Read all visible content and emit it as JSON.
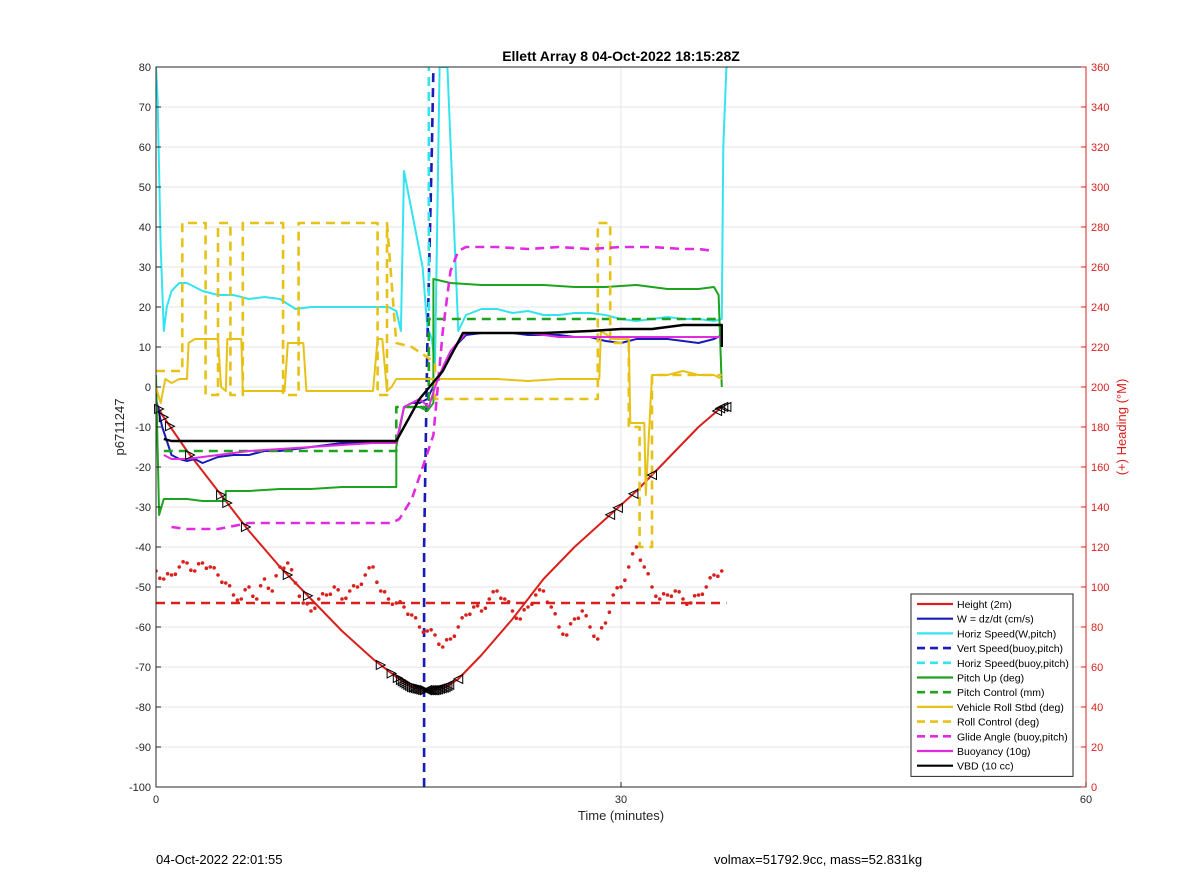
{
  "footer": {
    "left": "04-Oct-2022 22:01:55",
    "right": "volmax=51792.9cc, mass=52.831kg"
  },
  "chart_data": {
    "type": "line",
    "title": "Ellett Array 8 04-Oct-2022 18:15:28Z",
    "xlabel": "Time (minutes)",
    "ylabel": "p6711247",
    "y2label": "(+) Heading (°M)",
    "xlim": [
      0,
      60
    ],
    "ylim": [
      -100,
      80
    ],
    "y2lim": [
      0,
      360
    ],
    "x_ticks": [
      "0",
      "30",
      "60"
    ],
    "y_ticks": [
      "80",
      "70",
      "60",
      "50",
      "40",
      "30",
      "20",
      "10",
      "0",
      "-10",
      "-20",
      "-30",
      "-40",
      "-50",
      "-60",
      "-70",
      "-80",
      "-90",
      "-100"
    ],
    "y2_ticks": [
      "360",
      "340",
      "320",
      "300",
      "280",
      "260",
      "240",
      "220",
      "200",
      "180",
      "160",
      "140",
      "120",
      "100",
      "80",
      "60",
      "40",
      "20",
      "0"
    ],
    "grid": true,
    "legend_position": "bottom-right",
    "colors": {
      "red": "#d9201c",
      "blue": "#1a1ab8",
      "cyan": "#33e4ee",
      "green": "#1ea31e",
      "yellow": "#e6c218",
      "magenta": "#e02be0",
      "black": "#000000"
    },
    "series": [
      {
        "name": "Height (2m)",
        "color": "#d9201c",
        "style": "solid",
        "width": 2,
        "x": [
          0,
          0.4,
          2,
          4,
          6,
          8,
          10,
          12,
          14,
          15.5,
          16.5,
          17.3,
          18,
          18.7,
          19.5,
          21,
          23,
          25,
          27,
          29,
          31,
          33,
          35,
          36.5
        ],
        "y": [
          -4,
          -7,
          -16,
          -26,
          -36,
          -45,
          -53,
          -61,
          -68,
          -72.5,
          -75,
          -75.8,
          -75.8,
          -75,
          -73,
          -67,
          -58,
          -48,
          -40,
          -33,
          -26,
          -18,
          -10,
          -5
        ]
      },
      {
        "name": "W = dz/dt (cm/s)",
        "color": "#1a1ab8",
        "style": "solid",
        "width": 2,
        "x": [
          0,
          0.4,
          1,
          1.5,
          2,
          2.5,
          3,
          4,
          5,
          6,
          7,
          8,
          9,
          10,
          11,
          12,
          13,
          14,
          15,
          15.5,
          16,
          16.5,
          17,
          17.5,
          18,
          18.5,
          19,
          19.5,
          20,
          21,
          22,
          23,
          24,
          25,
          26,
          27,
          28,
          29,
          30,
          31,
          32,
          33,
          34,
          35,
          36,
          36.5
        ],
        "y": [
          -3,
          -10,
          -17,
          -18,
          -18.5,
          -18,
          -19,
          -17.5,
          -17,
          -17,
          -16,
          -16,
          -15.5,
          -15,
          -14.5,
          -14,
          -14,
          -14,
          -14,
          -14,
          -5,
          -4,
          -4,
          -3,
          1,
          4,
          8,
          11,
          13,
          13.5,
          13.5,
          13.5,
          13,
          13,
          13,
          12.5,
          12.5,
          11.5,
          11,
          12,
          12,
          12,
          11.5,
          11,
          12,
          13
        ]
      },
      {
        "name": "Horiz Speed(W,pitch)",
        "color": "#33e4ee",
        "style": "solid",
        "width": 2,
        "x": [
          0,
          0.1,
          0.3,
          0.5,
          0.7,
          1,
          1.5,
          2,
          3,
          4,
          5,
          6,
          7,
          8,
          9,
          10,
          11,
          12,
          13,
          14,
          15,
          15.5,
          15.8,
          16,
          16.3,
          16.8,
          17.2,
          17.5,
          17.8,
          18,
          18.3,
          18.8,
          19.5,
          20,
          21,
          22,
          23,
          24,
          25,
          26,
          27,
          28,
          29,
          30,
          31,
          32,
          33,
          34,
          35,
          36,
          36.5,
          36.6,
          36.8,
          36.9
        ],
        "y": [
          80,
          72,
          35,
          14,
          20,
          24,
          26,
          26,
          24,
          23,
          23,
          22,
          22.5,
          22,
          19.5,
          20,
          20,
          20,
          20,
          20,
          20,
          19,
          14,
          54,
          48,
          38,
          30,
          15,
          12,
          5,
          80,
          80,
          14,
          18,
          19.5,
          19.5,
          18.5,
          19,
          18,
          18,
          18.5,
          18.5,
          18,
          17,
          16.5,
          17,
          17.5,
          17,
          17,
          16.5,
          17,
          60,
          80,
          80
        ]
      },
      {
        "name": "Vert Speed(buoy,pitch)",
        "color": "#1a1ab8",
        "style": "dashed",
        "width": 2.6,
        "x": [
          17.3,
          17.3,
          17.5,
          17.8,
          17.9
        ],
        "y": [
          -100,
          -40,
          10,
          60,
          80
        ]
      },
      {
        "name": "Horiz Speed(buoy,pitch)",
        "color": "#33e4ee",
        "style": "dashed",
        "width": 2.6,
        "x": [
          17.6,
          17.6
        ],
        "y": [
          4,
          80
        ]
      },
      {
        "name": "Pitch Up (deg)",
        "color": "#1ea31e",
        "style": "solid",
        "width": 2,
        "x": [
          0,
          0.2,
          0.5,
          1,
          2,
          3,
          4.5,
          4.5,
          6,
          8,
          10,
          12,
          14,
          15.5,
          15.5,
          16,
          17,
          17.5,
          17.9,
          17.9,
          19,
          21,
          23,
          25,
          27,
          29,
          31,
          33,
          35,
          36,
          36.3,
          36.5
        ],
        "y": [
          3,
          -32,
          -28,
          -28,
          -28,
          -28.5,
          -28.5,
          -26,
          -26,
          -25.5,
          -25.5,
          -25,
          -25,
          -25,
          -15,
          -5,
          -5,
          -6,
          -4,
          27,
          26,
          25.5,
          25.5,
          25.5,
          25,
          25,
          25.5,
          24.5,
          24.5,
          25,
          23,
          0
        ]
      },
      {
        "name": "Pitch Control (mm)",
        "color": "#1ea31e",
        "style": "dashed",
        "width": 2.6,
        "x": [
          0.5,
          1,
          2,
          6,
          10,
          14,
          15.5,
          15.5,
          17,
          17.6,
          17.6,
          22,
          26,
          30,
          34,
          36.5
        ],
        "y": [
          -16,
          -16,
          -16,
          -16,
          -16,
          -16,
          -16,
          -5,
          -5,
          -5,
          17,
          17,
          17,
          17,
          17,
          17
        ]
      },
      {
        "name": "Vehicle Roll Stbd (deg)",
        "color": "#e6c218",
        "style": "solid",
        "width": 2,
        "x": [
          0,
          0.3,
          0.6,
          1,
          1.5,
          2,
          2.1,
          2.5,
          4,
          4.2,
          4.5,
          4.6,
          5.5,
          5.6,
          6,
          8,
          8.3,
          8.5,
          9.5,
          9.7,
          10,
          14,
          14.3,
          14.6,
          14.9,
          15.2,
          15.5,
          16,
          17,
          18,
          20,
          22,
          24,
          26,
          28,
          28.6,
          28.7,
          29.5,
          30.5,
          30.6,
          31.5,
          31.6,
          32,
          33,
          34,
          35,
          36,
          36.5
        ],
        "y": [
          0,
          -4,
          2,
          1,
          2,
          2,
          11,
          12,
          12,
          0,
          -1,
          12,
          12,
          -1,
          -1,
          -1,
          -1,
          11,
          11,
          -1,
          -1,
          -1,
          12,
          12,
          -1,
          0,
          2,
          2,
          2,
          2,
          2,
          2,
          1.5,
          2,
          2,
          2,
          14,
          12,
          12,
          -9,
          -9,
          -27,
          3,
          3,
          4,
          3,
          3,
          2
        ]
      },
      {
        "name": "Roll Control (deg)",
        "color": "#e6c218",
        "style": "dashed",
        "width": 2.6,
        "x": [
          0,
          0.5,
          0.8,
          1.7,
          1.7,
          2.2,
          3.2,
          3.2,
          4,
          4,
          4.8,
          4.8,
          5.6,
          5.6,
          8.2,
          8.2,
          9.2,
          9.2,
          14.3,
          14.3,
          14.9,
          14.9,
          15.5,
          16.5,
          17.3,
          18,
          18,
          20,
          24,
          28.5,
          28.5,
          29.3,
          29.3,
          30.5,
          30.5,
          31.2,
          31.2,
          32,
          32,
          36.5
        ],
        "y": [
          4,
          4,
          4,
          4,
          41,
          41,
          41,
          -2,
          -2,
          41,
          41,
          -2,
          -2,
          41,
          41,
          -2,
          -2,
          41,
          41,
          -2,
          -2,
          41,
          11,
          10,
          8,
          6,
          -3,
          -3,
          -3,
          -3,
          41,
          41,
          11,
          11,
          -10,
          -10,
          -40,
          -40,
          3,
          3
        ]
      },
      {
        "name": "Glide Angle (buoy,pitch)",
        "color": "#e02be0",
        "style": "dashed",
        "width": 2.6,
        "x": [
          1,
          2,
          4,
          6,
          8,
          10,
          12,
          14,
          15.2,
          15.7,
          16.5,
          17.3,
          17.9,
          18.5,
          19,
          19.5,
          20,
          22,
          24,
          26,
          28,
          30,
          32,
          34,
          35,
          36
        ],
        "y": [
          -35,
          -35.5,
          -35.5,
          -34,
          -34,
          -34,
          -34,
          -34,
          -34,
          -33,
          -28,
          -19,
          -12,
          14,
          29,
          34,
          35,
          35,
          34.5,
          35,
          34.5,
          35,
          35,
          34.5,
          34.5,
          34
        ]
      },
      {
        "name": "Buoyancy (10g)",
        "color": "#e02be0",
        "style": "solid",
        "width": 2,
        "x": [
          0.5,
          1,
          2,
          4,
          6,
          8,
          10,
          12,
          14,
          15.5,
          16,
          17,
          17.6,
          18,
          18.5,
          19,
          20,
          22,
          24,
          26,
          28,
          30,
          32,
          34,
          36.5
        ],
        "y": [
          -17,
          -18,
          -18,
          -17,
          -16,
          -15.5,
          -15,
          -14.5,
          -14,
          -14,
          -5,
          -3,
          -5,
          0,
          5,
          9,
          13.5,
          13.5,
          13.5,
          12.5,
          12.5,
          12.5,
          12.5,
          12.5,
          12.5
        ]
      },
      {
        "name": "VBD (10 cc)",
        "color": "#000000",
        "style": "solid",
        "width": 2.4,
        "x": [
          0.5,
          1,
          3,
          6,
          9,
          12,
          15.5,
          17,
          18.5,
          19.8,
          22,
          25,
          28,
          30,
          32,
          34,
          36.5,
          36.5
        ],
        "y": [
          -13,
          -13.5,
          -13.5,
          -13.5,
          -13.5,
          -13.5,
          -13.5,
          -3,
          4,
          13.5,
          13.5,
          13.5,
          14,
          14.5,
          14.5,
          15.5,
          15.5,
          10
        ]
      },
      {
        "name": "Heading Avg",
        "color": "#d9201c",
        "style": "dashed",
        "width": 2.6,
        "legend": false,
        "x": [
          0,
          36.8
        ],
        "y": [
          -54,
          -54
        ]
      },
      {
        "name": "Heading Samples",
        "color": "#d9201c",
        "style": "dots",
        "width": 2,
        "legend": false,
        "x": [
          0,
          0.5,
          1,
          1.5,
          2,
          2.5,
          3,
          3.5,
          4,
          4.5,
          5,
          5.5,
          6,
          6.5,
          7,
          7.5,
          8,
          8.5,
          9,
          9.5,
          10,
          10.5,
          11,
          11.5,
          12,
          12.5,
          13,
          13.5,
          14,
          14.5,
          15,
          15.5,
          16,
          16.5,
          17,
          17.5,
          18,
          18.5,
          19,
          19.5,
          20,
          20.5,
          21,
          21.5,
          22,
          22.5,
          23,
          23.5,
          24,
          24.5,
          25,
          25.5,
          26,
          26.5,
          27,
          27.5,
          28,
          28.5,
          29,
          29.5,
          30,
          30.5,
          31,
          31.5,
          32,
          32.5,
          33,
          33.5,
          34,
          34.5,
          35,
          35.5,
          36,
          36.5
        ],
        "y": [
          -46,
          -48,
          -47,
          -45,
          -44,
          -46,
          -44,
          -45,
          -47,
          -49,
          -52,
          -53,
          -50,
          -53,
          -48,
          -51,
          -45,
          -44,
          -49,
          -54,
          -56,
          -53,
          -52,
          -50,
          -53,
          -51,
          -50,
          -47,
          -45,
          -51,
          -53,
          -54,
          -55,
          -57,
          -60,
          -61,
          -62,
          -65,
          -63,
          -60,
          -57,
          -55,
          -56,
          -53,
          -51,
          -53,
          -56,
          -58,
          -55,
          -52,
          -51,
          -55,
          -60,
          -62,
          -58,
          -56,
          -60,
          -63,
          -59,
          -52,
          -50,
          -45,
          -40,
          -45,
          -50,
          -53,
          -52,
          -51,
          -53,
          -54,
          -52,
          -50,
          -47,
          -46
        ]
      }
    ],
    "legend_entries": [
      {
        "label": "Height (2m)",
        "color": "#d9201c",
        "style": "solid"
      },
      {
        "label": "W = dz/dt (cm/s)",
        "color": "#1a1ab8",
        "style": "solid"
      },
      {
        "label": "Horiz Speed(W,pitch)",
        "color": "#33e4ee",
        "style": "solid"
      },
      {
        "label": "Vert Speed(buoy,pitch)",
        "color": "#1a1ab8",
        "style": "dashed"
      },
      {
        "label": "Horiz Speed(buoy,pitch)",
        "color": "#33e4ee",
        "style": "dashed"
      },
      {
        "label": "Pitch Up (deg)",
        "color": "#1ea31e",
        "style": "solid"
      },
      {
        "label": "Pitch Control (mm)",
        "color": "#1ea31e",
        "style": "dashed"
      },
      {
        "label": "Vehicle Roll Stbd (deg)",
        "color": "#e6c218",
        "style": "solid"
      },
      {
        "label": "Roll Control (deg)",
        "color": "#e6c218",
        "style": "dashed"
      },
      {
        "label": "Glide Angle (buoy,pitch)",
        "color": "#e02be0",
        "style": "dashed"
      },
      {
        "label": "Buoyancy (10g)",
        "color": "#e02be0",
        "style": "solid"
      },
      {
        "label": "VBD (10 cc)",
        "color": "#000000",
        "style": "solid"
      }
    ],
    "markers": {
      "color": "#000000",
      "down_x": [
        0.2,
        0.5,
        0.9,
        2.2,
        4.2,
        4.6,
        5.8,
        8.5,
        9.8,
        14.5,
        15.2,
        15.6
      ],
      "up_x": [
        19.5,
        29.3,
        29.8,
        30.8,
        32,
        36.2,
        36.4,
        36.6,
        36.8
      ],
      "bottom_x_range": [
        15.8,
        19.0
      ]
    }
  }
}
